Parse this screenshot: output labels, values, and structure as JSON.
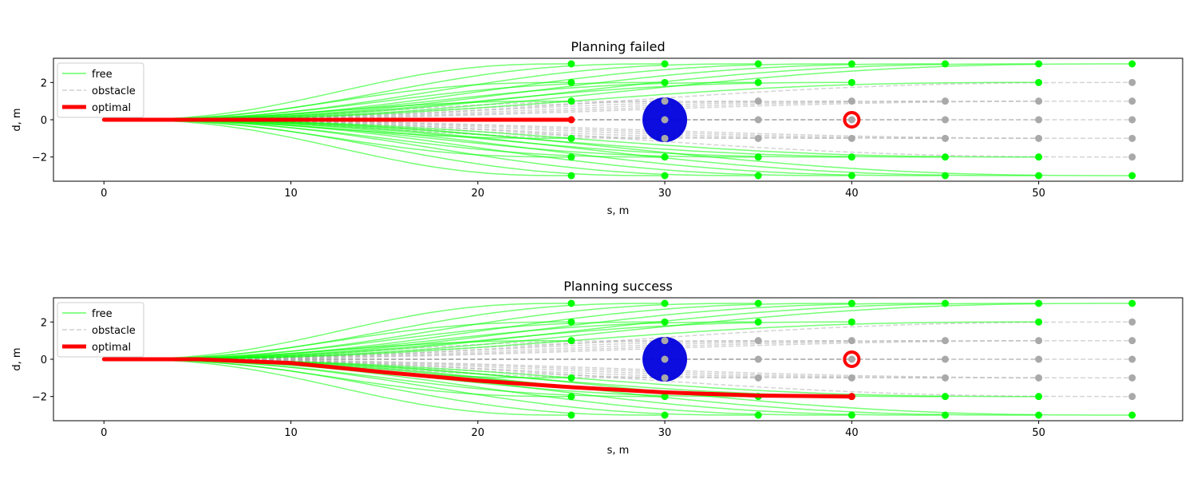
{
  "colors": {
    "free": "#00ff00",
    "obstacle": "#aaaaaa",
    "obstacle_point": "#a9a9a9",
    "optimal": "#ff0000",
    "circle_obstacle": "#0000dd",
    "target_marker": "#ff0000"
  },
  "chart_data": [
    {
      "type": "line",
      "title": "Planning failed",
      "xlabel": "s, m",
      "ylabel": "d, m",
      "xlim": [
        -2.7,
        57.7
      ],
      "ylim": [
        -3.3,
        3.3
      ],
      "xticks": [
        0,
        10,
        20,
        30,
        40,
        50
      ],
      "yticks": [
        -2,
        0,
        2
      ],
      "legend": {
        "placement": "top-left",
        "entries": [
          "free",
          "obstacle",
          "optimal"
        ]
      },
      "trajectory_end_s": [
        25,
        30,
        35,
        40,
        45,
        50,
        55
      ],
      "lateral_offsets_d": [
        -3,
        -2,
        -1,
        0,
        1,
        2,
        3
      ],
      "free_endpoints": [
        [
          25,
          -3
        ],
        [
          25,
          -2
        ],
        [
          25,
          -1
        ],
        [
          25,
          1
        ],
        [
          25,
          2
        ],
        [
          25,
          3
        ],
        [
          30,
          -3
        ],
        [
          30,
          -2
        ],
        [
          30,
          2
        ],
        [
          30,
          3
        ],
        [
          35,
          -3
        ],
        [
          35,
          -2
        ],
        [
          35,
          2
        ],
        [
          35,
          3
        ],
        [
          40,
          -3
        ],
        [
          40,
          -2
        ],
        [
          40,
          2
        ],
        [
          40,
          3
        ],
        [
          45,
          -3
        ],
        [
          45,
          -2
        ],
        [
          45,
          3
        ],
        [
          50,
          -3
        ],
        [
          50,
          -2
        ],
        [
          50,
          2
        ],
        [
          50,
          3
        ],
        [
          55,
          -3
        ],
        [
          55,
          3
        ]
      ],
      "obstacle_endpoints": [
        [
          30,
          -1
        ],
        [
          30,
          0
        ],
        [
          30,
          1
        ],
        [
          35,
          -1
        ],
        [
          35,
          0
        ],
        [
          35,
          1
        ],
        [
          40,
          -1
        ],
        [
          40,
          0
        ],
        [
          40,
          1
        ],
        [
          45,
          -1
        ],
        [
          45,
          0
        ],
        [
          45,
          1
        ],
        [
          50,
          -1
        ],
        [
          50,
          0
        ],
        [
          50,
          1
        ],
        [
          55,
          -2
        ],
        [
          55,
          -1
        ],
        [
          55,
          0
        ],
        [
          55,
          1
        ],
        [
          55,
          2
        ]
      ],
      "optimal_path": {
        "x": [
          0,
          5,
          10,
          15,
          20,
          25
        ],
        "y": [
          0,
          0,
          0,
          0,
          0,
          0
        ]
      },
      "circle_obstacle": {
        "center": [
          30,
          0
        ],
        "radius_m": 1.2
      },
      "target_marker": [
        40,
        0
      ]
    },
    {
      "type": "line",
      "title": "Planning success",
      "xlabel": "s, m",
      "ylabel": "d, m",
      "xlim": [
        -2.7,
        57.7
      ],
      "ylim": [
        -3.3,
        3.3
      ],
      "xticks": [
        0,
        10,
        20,
        30,
        40,
        50
      ],
      "yticks": [
        -2,
        0,
        2
      ],
      "legend": {
        "placement": "top-left",
        "entries": [
          "free",
          "obstacle",
          "optimal"
        ]
      },
      "trajectory_end_s": [
        25,
        30,
        35,
        40,
        45,
        50,
        55
      ],
      "lateral_offsets_d": [
        -3,
        -2,
        -1,
        0,
        1,
        2,
        3
      ],
      "free_endpoints": [
        [
          25,
          -3
        ],
        [
          25,
          -2
        ],
        [
          25,
          -1
        ],
        [
          25,
          1
        ],
        [
          25,
          2
        ],
        [
          25,
          3
        ],
        [
          30,
          -3
        ],
        [
          30,
          -2
        ],
        [
          30,
          2
        ],
        [
          30,
          3
        ],
        [
          35,
          -3
        ],
        [
          35,
          -2
        ],
        [
          35,
          2
        ],
        [
          35,
          3
        ],
        [
          40,
          -3
        ],
        [
          40,
          -2
        ],
        [
          40,
          2
        ],
        [
          40,
          3
        ],
        [
          45,
          -3
        ],
        [
          45,
          -2
        ],
        [
          45,
          3
        ],
        [
          50,
          -3
        ],
        [
          50,
          -2
        ],
        [
          50,
          2
        ],
        [
          50,
          3
        ],
        [
          55,
          -3
        ],
        [
          55,
          3
        ]
      ],
      "obstacle_endpoints": [
        [
          30,
          -1
        ],
        [
          30,
          0
        ],
        [
          30,
          1
        ],
        [
          35,
          -1
        ],
        [
          35,
          0
        ],
        [
          35,
          1
        ],
        [
          40,
          -1
        ],
        [
          40,
          0
        ],
        [
          40,
          1
        ],
        [
          45,
          -1
        ],
        [
          45,
          0
        ],
        [
          45,
          1
        ],
        [
          50,
          -1
        ],
        [
          50,
          0
        ],
        [
          50,
          1
        ],
        [
          55,
          -2
        ],
        [
          55,
          -1
        ],
        [
          55,
          0
        ],
        [
          55,
          1
        ],
        [
          55,
          2
        ]
      ],
      "optimal_path": {
        "x": [
          0,
          5,
          10,
          15,
          20,
          25,
          30,
          35,
          40
        ],
        "y": [
          0,
          0,
          -0.2,
          -0.7,
          -1.15,
          -1.5,
          -1.78,
          -1.95,
          -2.0
        ]
      },
      "circle_obstacle": {
        "center": [
          30,
          0
        ],
        "radius_m": 1.2
      },
      "target_marker": [
        40,
        0
      ]
    }
  ]
}
